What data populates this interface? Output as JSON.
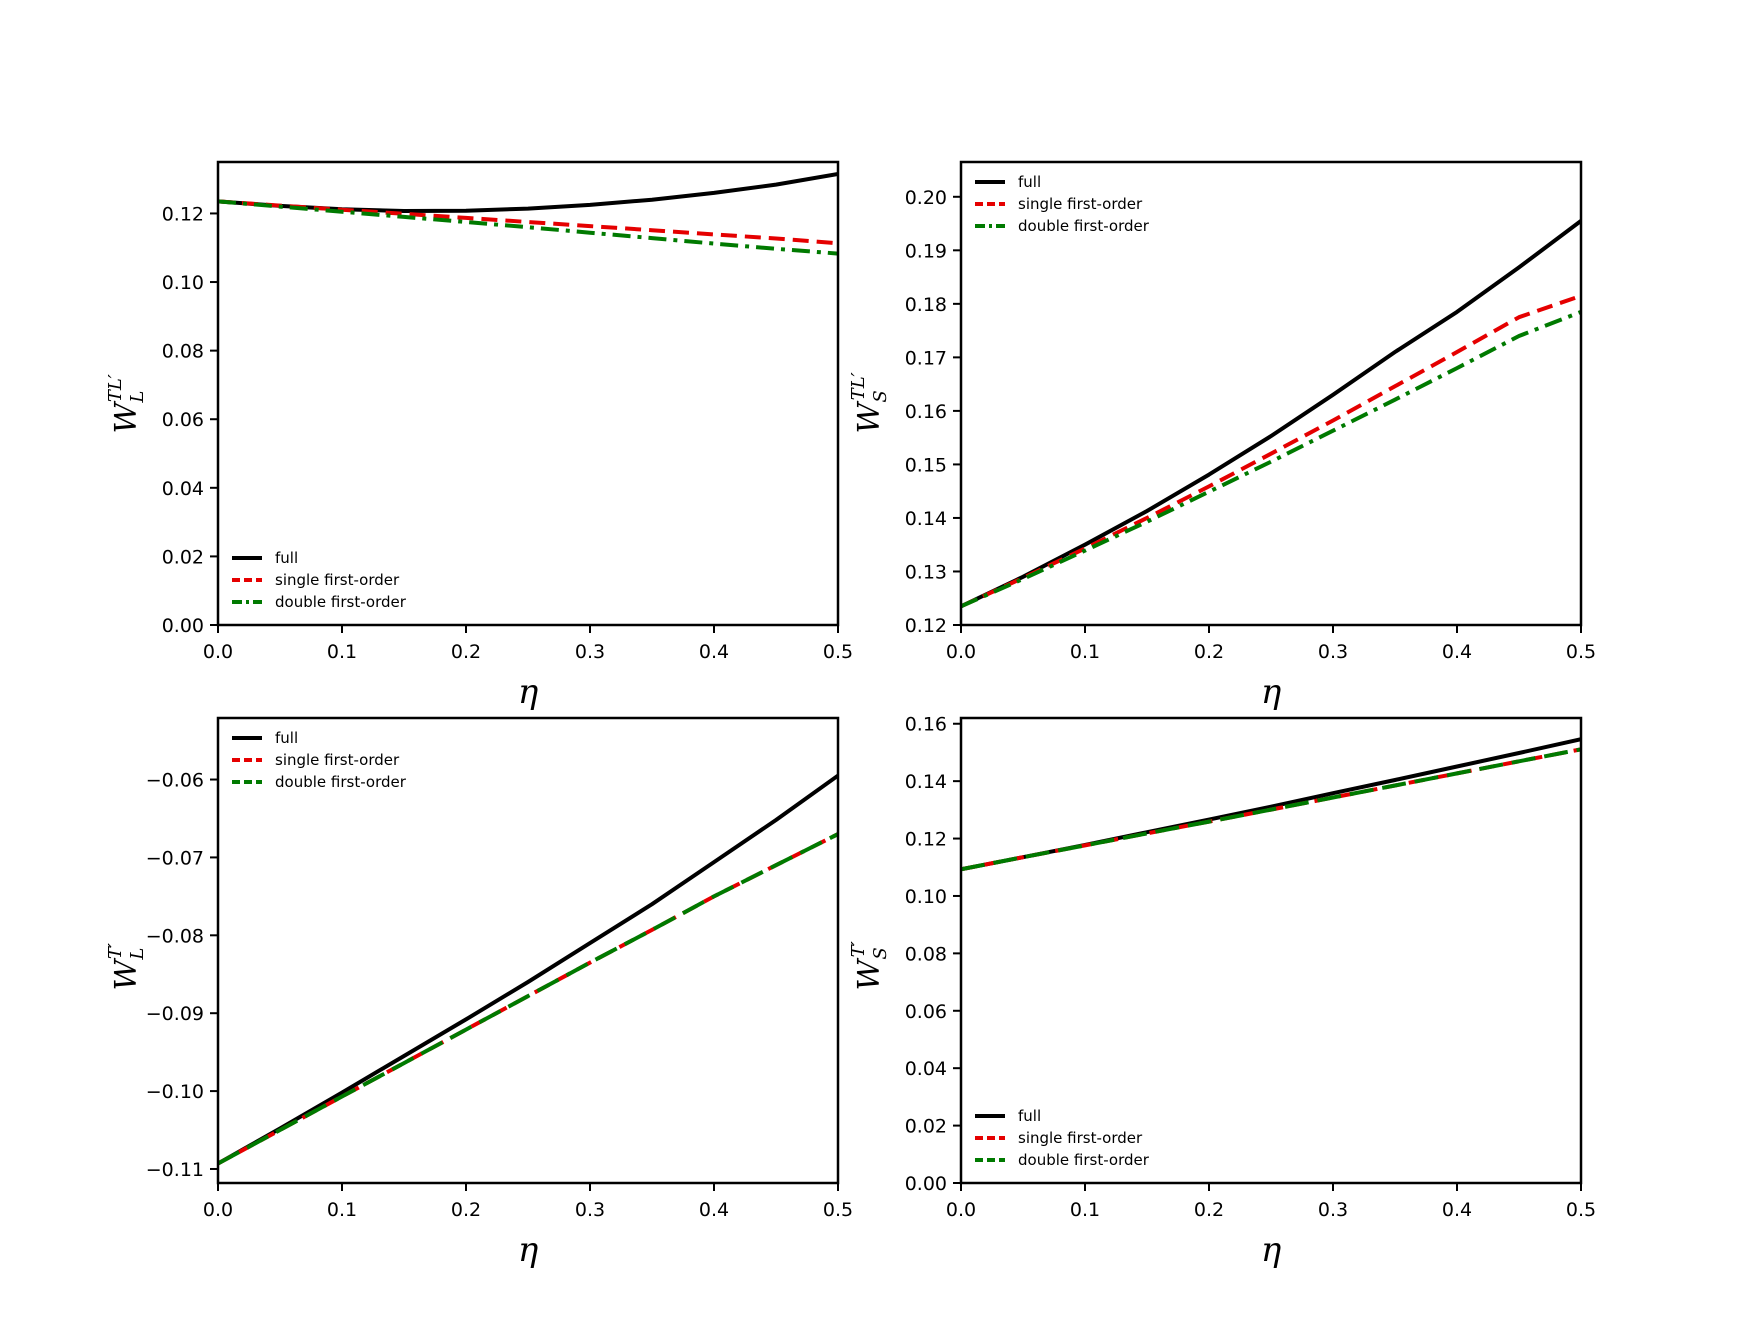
{
  "chart_data": [
    {
      "type": "line",
      "panel": "top-left",
      "ylabel": {
        "main": "W",
        "sub": "L",
        "sup": "TL′"
      },
      "xlabel": "η",
      "xlim": [
        0,
        0.5
      ],
      "ylim": [
        0,
        0.135
      ],
      "xticks": [
        "0.0",
        "0.1",
        "0.2",
        "0.3",
        "0.4",
        "0.5"
      ],
      "xtick_values": [
        0,
        0.1,
        0.2,
        0.3,
        0.4,
        0.5
      ],
      "yticks": [
        "0.00",
        "0.02",
        "0.04",
        "0.06",
        "0.08",
        "0.10",
        "0.12"
      ],
      "ytick_values": [
        0,
        0.02,
        0.04,
        0.06,
        0.08,
        0.1,
        0.12
      ],
      "legend": "lower-left",
      "x": [
        0,
        0.05,
        0.1,
        0.15,
        0.2,
        0.25,
        0.3,
        0.35,
        0.4,
        0.45,
        0.5
      ],
      "series": [
        {
          "name": "full",
          "color": "#000000",
          "dash": "solid",
          "values": [
            0.1235,
            0.1222,
            0.1212,
            0.1207,
            0.1208,
            0.1214,
            0.1225,
            0.124,
            0.126,
            0.1284,
            0.1315
          ]
        },
        {
          "name": "single first-order",
          "color": "#e50000",
          "dash": "dashed",
          "values": [
            0.1235,
            0.1223,
            0.1211,
            0.1199,
            0.1187,
            0.1175,
            0.1163,
            0.1151,
            0.1139,
            0.1127,
            0.1113
          ]
        },
        {
          "name": "double first-order",
          "color": "#007a00",
          "dash": "dashdot",
          "values": [
            0.1235,
            0.122,
            0.1205,
            0.119,
            0.1175,
            0.116,
            0.1144,
            0.1128,
            0.1112,
            0.1097,
            0.1083
          ]
        }
      ]
    },
    {
      "type": "line",
      "panel": "top-right",
      "ylabel": {
        "main": "W",
        "sub": "S",
        "sup": "TL′"
      },
      "xlabel": "η",
      "xlim": [
        0,
        0.5
      ],
      "ylim": [
        0.12,
        0.2065
      ],
      "xticks": [
        "0.0",
        "0.1",
        "0.2",
        "0.3",
        "0.4",
        "0.5"
      ],
      "xtick_values": [
        0,
        0.1,
        0.2,
        0.3,
        0.4,
        0.5
      ],
      "yticks": [
        "0.12",
        "0.13",
        "0.14",
        "0.15",
        "0.16",
        "0.17",
        "0.18",
        "0.19",
        "0.20"
      ],
      "ytick_values": [
        0.12,
        0.13,
        0.14,
        0.15,
        0.16,
        0.17,
        0.18,
        0.19,
        0.2
      ],
      "legend": "upper-left",
      "x": [
        0,
        0.05,
        0.1,
        0.15,
        0.2,
        0.25,
        0.3,
        0.35,
        0.4,
        0.45,
        0.5
      ],
      "series": [
        {
          "name": "full",
          "color": "#000000",
          "dash": "solid",
          "values": [
            0.1235,
            0.129,
            0.135,
            0.1413,
            0.1481,
            0.1553,
            0.163,
            0.171,
            0.1785,
            0.1868,
            0.1955
          ]
        },
        {
          "name": "single first-order",
          "color": "#e50000",
          "dash": "dashed",
          "values": [
            0.1235,
            0.1288,
            0.1343,
            0.14,
            0.1459,
            0.152,
            0.1582,
            0.1646,
            0.171,
            0.1775,
            0.1815
          ]
        },
        {
          "name": "double first-order",
          "color": "#007a00",
          "dash": "dashdot",
          "values": [
            0.1235,
            0.1286,
            0.1339,
            0.1393,
            0.1449,
            0.1505,
            0.1563,
            0.1621,
            0.168,
            0.174,
            0.1785
          ]
        }
      ]
    },
    {
      "type": "line",
      "panel": "bottom-left",
      "ylabel": {
        "main": "W",
        "sub": "L",
        "sup": "T′"
      },
      "xlabel": "η",
      "xlim": [
        0,
        0.5
      ],
      "ylim": [
        -0.1118,
        -0.0521
      ],
      "xticks": [
        "0.0",
        "0.1",
        "0.2",
        "0.3",
        "0.4",
        "0.5"
      ],
      "xtick_values": [
        0,
        0.1,
        0.2,
        0.3,
        0.4,
        0.5
      ],
      "yticks": [
        "−0.11",
        "−0.10",
        "−0.09",
        "−0.08",
        "−0.07",
        "−0.06"
      ],
      "ytick_values": [
        -0.11,
        -0.1,
        -0.09,
        -0.08,
        -0.07,
        -0.06
      ],
      "legend": "upper-left",
      "x": [
        0,
        0.05,
        0.1,
        0.15,
        0.2,
        0.25,
        0.3,
        0.35,
        0.4,
        0.45,
        0.5
      ],
      "series": [
        {
          "name": "full",
          "color": "#000000",
          "dash": "solid",
          "values": [
            -0.1093,
            -0.1048,
            -0.1002,
            -0.0955,
            -0.0908,
            -0.086,
            -0.081,
            -0.076,
            -0.0706,
            -0.0652,
            -0.0595
          ]
        },
        {
          "name": "single first-order",
          "color": "#e50000",
          "dash": "dashed",
          "values": [
            -0.1093,
            -0.105,
            -0.1007,
            -0.0964,
            -0.0921,
            -0.0878,
            -0.0835,
            -0.0793,
            -0.075,
            -0.071,
            -0.067
          ]
        },
        {
          "name": "double first-order",
          "color": "#007a00",
          "dash": "longdash",
          "values": [
            -0.1093,
            -0.105,
            -0.1007,
            -0.0964,
            -0.0921,
            -0.0878,
            -0.0835,
            -0.0793,
            -0.075,
            -0.071,
            -0.067
          ]
        }
      ]
    },
    {
      "type": "line",
      "panel": "bottom-right",
      "ylabel": {
        "main": "W",
        "sub": "S",
        "sup": "T′"
      },
      "xlabel": "η",
      "xlim": [
        0,
        0.5
      ],
      "ylim": [
        0,
        0.162
      ],
      "xticks": [
        "0.0",
        "0.1",
        "0.2",
        "0.3",
        "0.4",
        "0.5"
      ],
      "xtick_values": [
        0,
        0.1,
        0.2,
        0.3,
        0.4,
        0.5
      ],
      "yticks": [
        "0.00",
        "0.02",
        "0.04",
        "0.06",
        "0.08",
        "0.10",
        "0.12",
        "0.14",
        "0.16"
      ],
      "ytick_values": [
        0,
        0.02,
        0.04,
        0.06,
        0.08,
        0.1,
        0.12,
        0.14,
        0.16
      ],
      "legend": "lower-left",
      "x": [
        0,
        0.05,
        0.1,
        0.15,
        0.2,
        0.25,
        0.3,
        0.35,
        0.4,
        0.45,
        0.5
      ],
      "series": [
        {
          "name": "full",
          "color": "#000000",
          "dash": "solid",
          "values": [
            0.1093,
            0.1135,
            0.1178,
            0.1222,
            0.1266,
            0.1311,
            0.1358,
            0.1404,
            0.1451,
            0.1498,
            0.1546
          ]
        },
        {
          "name": "single first-order",
          "color": "#e50000",
          "dash": "dashed",
          "values": [
            0.1093,
            0.1135,
            0.1176,
            0.1218,
            0.1259,
            0.1301,
            0.1343,
            0.1385,
            0.1427,
            0.1469,
            0.1511
          ]
        },
        {
          "name": "double first-order",
          "color": "#007a00",
          "dash": "longdash",
          "values": [
            0.1093,
            0.1135,
            0.1176,
            0.1218,
            0.1259,
            0.1301,
            0.1343,
            0.1385,
            0.1427,
            0.1469,
            0.1511
          ]
        }
      ]
    }
  ]
}
